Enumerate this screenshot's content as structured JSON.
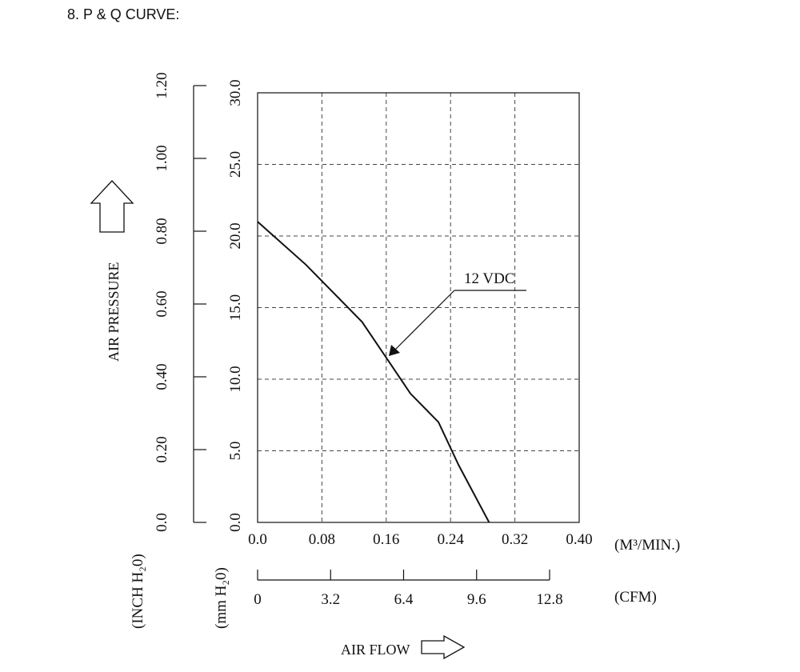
{
  "heading": "8. P & Q CURVE:",
  "chart_data": {
    "type": "line",
    "x_axis": {
      "ticks": [
        "0.0",
        "0.08",
        "0.16",
        "0.24",
        "0.32",
        "0.40"
      ],
      "unit_label": "(M³/MIN.)",
      "xlim": [
        0,
        0.4
      ]
    },
    "x_axis_secondary": {
      "ticks": [
        "0",
        "3.2",
        "6.4",
        "9.6",
        "12.8"
      ],
      "unit_label": "(CFM)",
      "xlim": [
        0,
        12.8
      ]
    },
    "y_axis": {
      "ticks": [
        "0.0",
        "5.0",
        "10.0",
        "15.0",
        "20.0",
        "25.0",
        "30.0"
      ],
      "unit_label": "(mm H₂0)",
      "ylim": [
        0,
        30
      ]
    },
    "y_axis_secondary": {
      "ticks": [
        "0.0",
        "0.20",
        "0.40",
        "0.60",
        "0.80",
        "1.00",
        "1.20"
      ],
      "unit_label": "(INCH H₂0)",
      "ylim": [
        0,
        1.2
      ]
    },
    "ylabel": "AIR PRESSURE",
    "xlabel": "AIR FLOW",
    "grid": true,
    "series": [
      {
        "name": "12 VDC",
        "x": [
          0.0,
          0.06,
          0.13,
          0.16,
          0.19,
          0.225,
          0.25,
          0.288
        ],
        "y": [
          21.0,
          18.0,
          14.0,
          11.5,
          9.0,
          7.0,
          4.0,
          0.0
        ]
      }
    ]
  }
}
